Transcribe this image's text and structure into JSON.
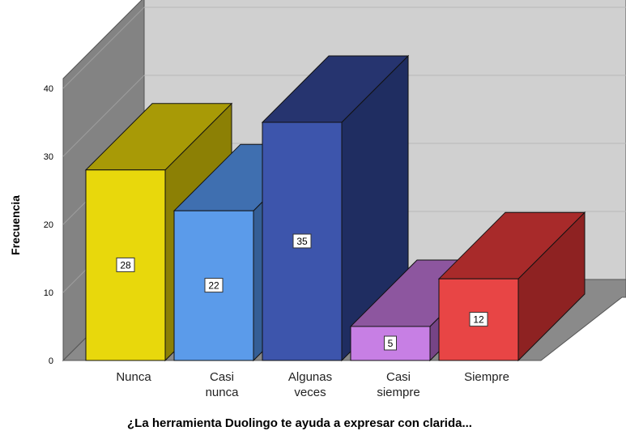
{
  "chart_data": {
    "type": "bar",
    "categories": [
      [
        "Nunca"
      ],
      [
        "Casi",
        "nunca"
      ],
      [
        "Algunas",
        "veces"
      ],
      [
        "Casi",
        "siempre"
      ],
      [
        "Siempre"
      ]
    ],
    "values": [
      28,
      22,
      35,
      5,
      12
    ],
    "data_labels": [
      "28",
      "22",
      "35",
      "5",
      "12"
    ],
    "xlabel": "¿La herramienta Duolingo te ayuda a expresar con clarida...",
    "ylabel": "Frecuencia",
    "ylim": [
      0,
      40
    ],
    "yticks": [
      "0",
      "10",
      "20",
      "30",
      "40"
    ],
    "grid": true,
    "colors": {
      "front": [
        "#e8d80c",
        "#5b9bea",
        "#3d55ac",
        "#c77fe4",
        "#e84545"
      ],
      "top": [
        "#a89a06",
        "#3f6fb0",
        "#26346f",
        "#8d569f",
        "#a82a2a"
      ],
      "side": [
        "#8c8005",
        "#345e96",
        "#1f2d61",
        "#764486",
        "#8e2222"
      ]
    }
  }
}
